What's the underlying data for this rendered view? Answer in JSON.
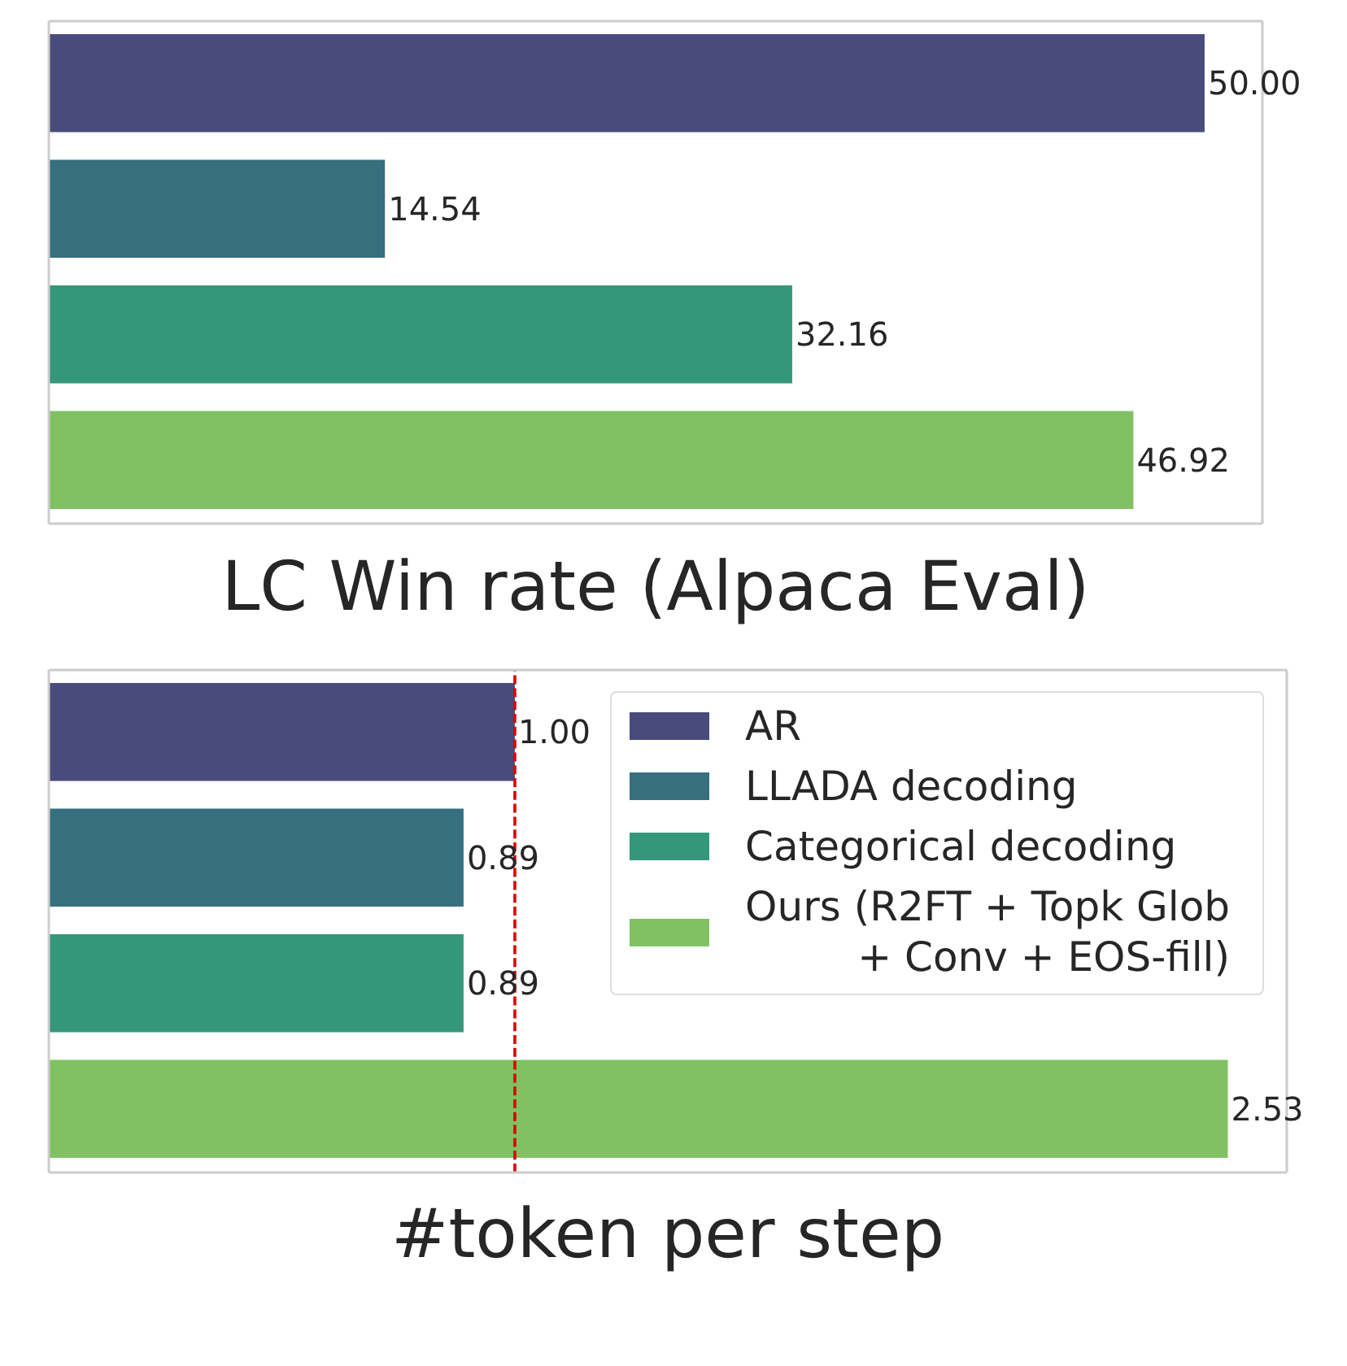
{
  "chart_data": [
    {
      "type": "bar",
      "orientation": "horizontal",
      "categories": [
        null,
        null,
        null,
        null
      ],
      "values": [
        50.0,
        14.54,
        32.16,
        46.92
      ],
      "colors": [
        "#4a4b7d",
        "#366f7e",
        "#35977a",
        "#80c263"
      ],
      "value_labels": [
        "50.00",
        "14.54",
        "32.16",
        "46.92"
      ],
      "xlabel": "LC Win rate (Alpaca Eval)",
      "tick_labels": false
    },
    {
      "type": "bar",
      "orientation": "horizontal",
      "stacked": true,
      "categories": [
        null,
        null,
        null,
        null
      ],
      "series": [
        {
          "name": "AR",
          "color": "#4a4b7d",
          "values": [
            1.0,
            null,
            null,
            null
          ],
          "value_labels": [
            "1.00",
            null,
            null,
            null
          ]
        },
        {
          "name": "LLADA decoding",
          "color": "#366f7e",
          "values": [
            null,
            0.89,
            null,
            null
          ],
          "value_labels": [
            null,
            "0.89",
            null,
            null
          ]
        },
        {
          "name": "Categorical decoding",
          "color": "#35977a",
          "values": [
            null,
            null,
            0.89,
            null
          ],
          "value_labels": [
            null,
            null,
            "0.89",
            null
          ]
        },
        {
          "name": "Ours (R2FT + Topk Glob\n+ Conv + EOS-fill)",
          "color": "#80c263",
          "values": [
            null,
            null,
            null,
            2.53
          ],
          "value_labels": [
            null,
            null,
            null,
            "2.53"
          ]
        }
      ],
      "xlabel": "#token per step",
      "ref_lines": [
        {
          "axis": "x",
          "value": 1.0,
          "color": "#dd0000",
          "line_style": "dashed"
        }
      ],
      "legend": "top right",
      "tick_labels": false
    }
  ]
}
